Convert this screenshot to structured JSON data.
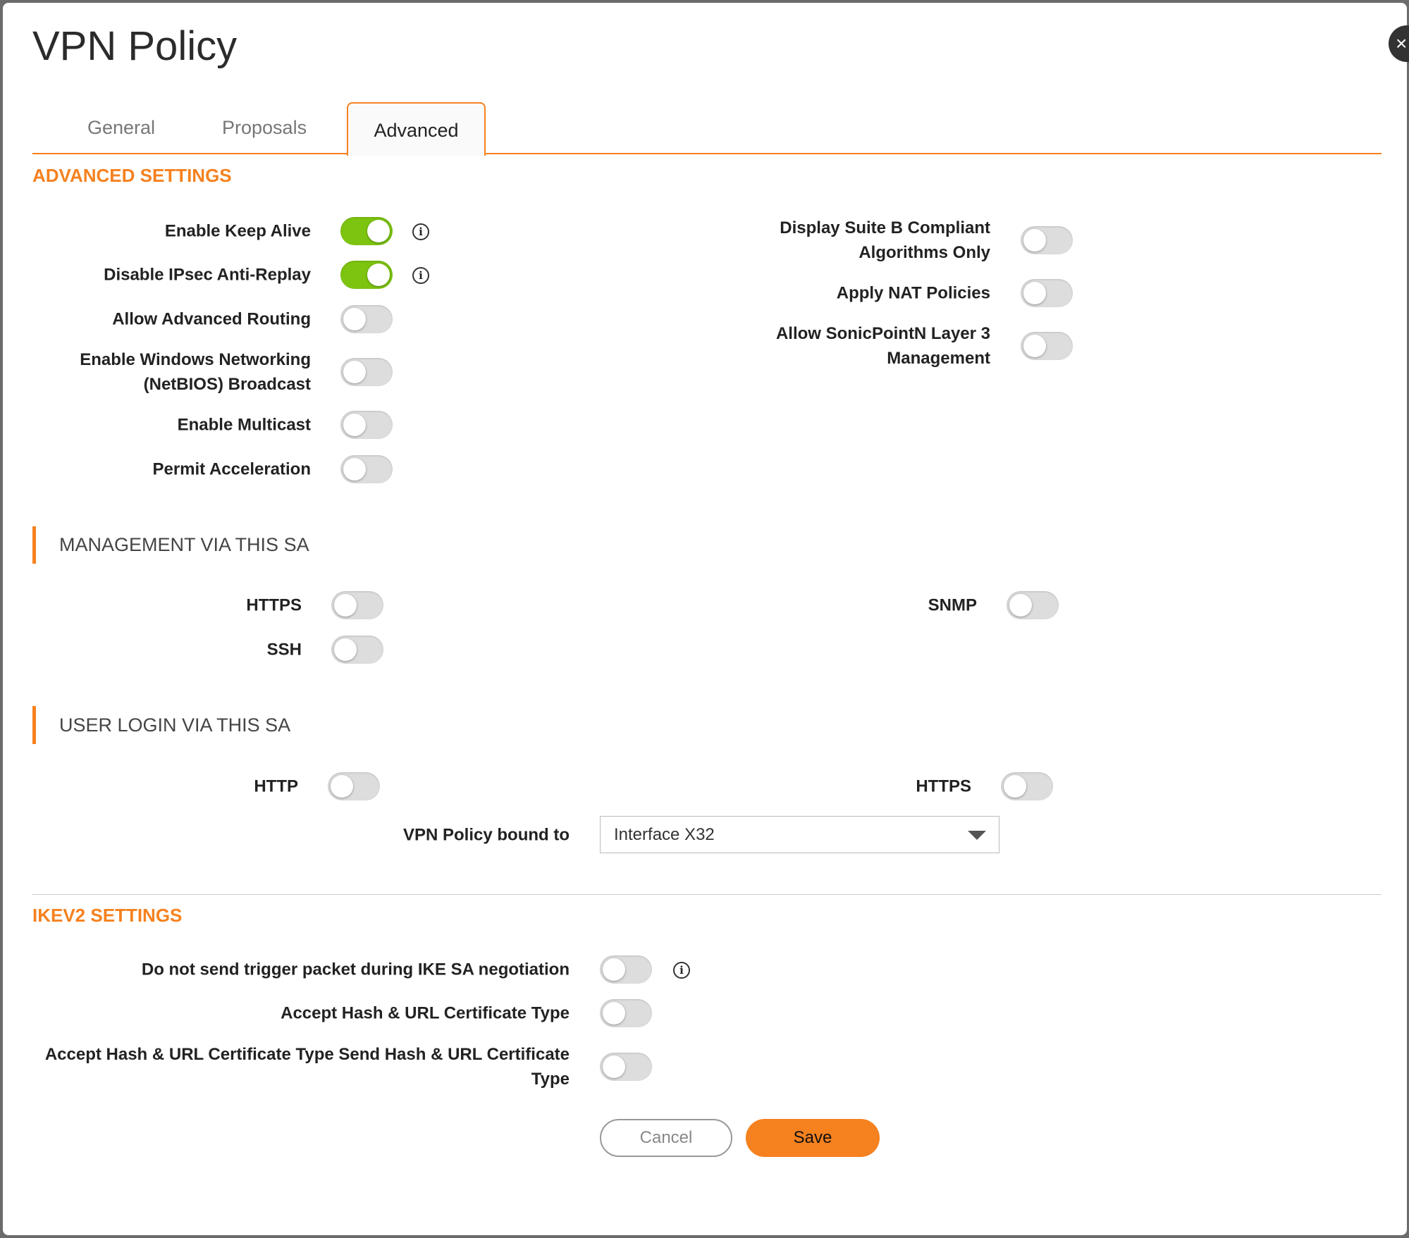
{
  "title": "VPN Policy",
  "tabs": [
    "General",
    "Proposals",
    "Advanced"
  ],
  "active_tab": "Advanced",
  "advanced": {
    "heading": "ADVANCED SETTINGS",
    "left": [
      {
        "label": "Enable Keep Alive",
        "on": true,
        "info": true
      },
      {
        "label": "Disable IPsec Anti-Replay",
        "on": true,
        "info": true
      },
      {
        "label": "Allow Advanced Routing",
        "on": false
      },
      {
        "label": "Enable Windows Networking (NetBIOS) Broadcast",
        "on": false
      },
      {
        "label": "Enable Multicast",
        "on": false
      },
      {
        "label": "Permit Acceleration",
        "on": false
      }
    ],
    "right": [
      {
        "label": "Display Suite B Compliant Algorithms Only",
        "on": false
      },
      {
        "label": "Apply NAT Policies",
        "on": false
      },
      {
        "label": "Allow SonicPointN Layer 3 Management",
        "on": false
      }
    ]
  },
  "management": {
    "heading": "MANAGEMENT VIA THIS SA",
    "https": {
      "label": "HTTPS",
      "on": false
    },
    "ssh": {
      "label": "SSH",
      "on": false
    },
    "snmp": {
      "label": "SNMP",
      "on": false
    }
  },
  "user_login": {
    "heading": "USER LOGIN VIA THIS SA",
    "http": {
      "label": "HTTP",
      "on": false
    },
    "https": {
      "label": "HTTPS",
      "on": false
    },
    "bound_label": "VPN Policy bound to",
    "bound_value": "Interface X32"
  },
  "ikev2": {
    "heading": "IKEV2 SETTINGS",
    "rows": [
      {
        "label": "Do not send trigger packet during IKE SA negotiation",
        "on": false,
        "info": true
      },
      {
        "label": "Accept Hash & URL Certificate Type",
        "on": false
      },
      {
        "label": "Accept Hash & URL Certificate Type Send Hash & URL Certificate Type",
        "on": false
      }
    ]
  },
  "buttons": {
    "cancel": "Cancel",
    "save": "Save"
  },
  "colors": {
    "accent": "#f5811f",
    "toggle_on": "#7cc40f"
  }
}
